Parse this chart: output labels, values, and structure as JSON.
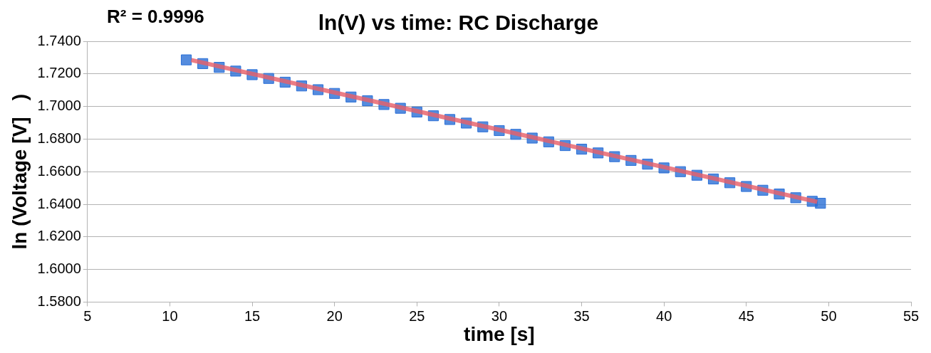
{
  "chart_data": {
    "type": "scatter",
    "title": "ln(V) vs time: RC Discharge",
    "xlabel": "time [s]",
    "ylabel": "ln (Voltage [V]   )",
    "annotations": [
      "R² = 0.9996"
    ],
    "x": [
      11,
      12,
      13,
      14,
      15,
      16,
      17,
      18,
      19,
      20,
      21,
      22,
      23,
      24,
      25,
      26,
      27,
      28,
      29,
      30,
      31,
      32,
      33,
      34,
      35,
      36,
      37,
      38,
      39,
      40,
      41,
      42,
      43,
      44,
      45,
      46,
      47,
      48,
      49,
      49.5
    ],
    "series": [
      {
        "color": "#2a6fd6",
        "marker": "square",
        "values": [
          1.7286,
          1.7263,
          1.724,
          1.7217,
          1.7195,
          1.7172,
          1.7149,
          1.7126,
          1.7103,
          1.708,
          1.7058,
          1.7035,
          1.7012,
          1.6989,
          1.6966,
          1.6943,
          1.692,
          1.6898,
          1.6875,
          1.6852,
          1.6829,
          1.6806,
          1.6783,
          1.676,
          1.6738,
          1.6715,
          1.6692,
          1.6669,
          1.6646,
          1.6623,
          1.66,
          1.6578,
          1.6555,
          1.6532,
          1.6509,
          1.6486,
          1.6463,
          1.644,
          1.6418,
          1.6406
        ]
      },
      {
        "type": "line",
        "color": "#e8606a",
        "x": [
          11.3,
          49.3
        ],
        "values": [
          1.7285,
          1.6415
        ],
        "marker": "none"
      }
    ],
    "grid": "y",
    "legend": false,
    "xlim": [
      5,
      55
    ],
    "xticks": [
      5,
      10,
      15,
      20,
      25,
      30,
      35,
      40,
      45,
      50,
      55
    ],
    "ylim": [
      1.58,
      1.74
    ],
    "yticks": [
      {
        "value": 1.58,
        "label": "1.5800"
      },
      {
        "value": 1.6,
        "label": "1.6000"
      },
      {
        "value": 1.62,
        "label": "1.6200"
      },
      {
        "value": 1.64,
        "label": "1.6400"
      },
      {
        "value": 1.66,
        "label": "1.6600"
      },
      {
        "value": 1.68,
        "label": "1.6800"
      },
      {
        "value": 1.7,
        "label": "1.7000"
      },
      {
        "value": 1.72,
        "label": "1.7200"
      },
      {
        "value": 1.74,
        "label": "1.7400"
      }
    ]
  }
}
